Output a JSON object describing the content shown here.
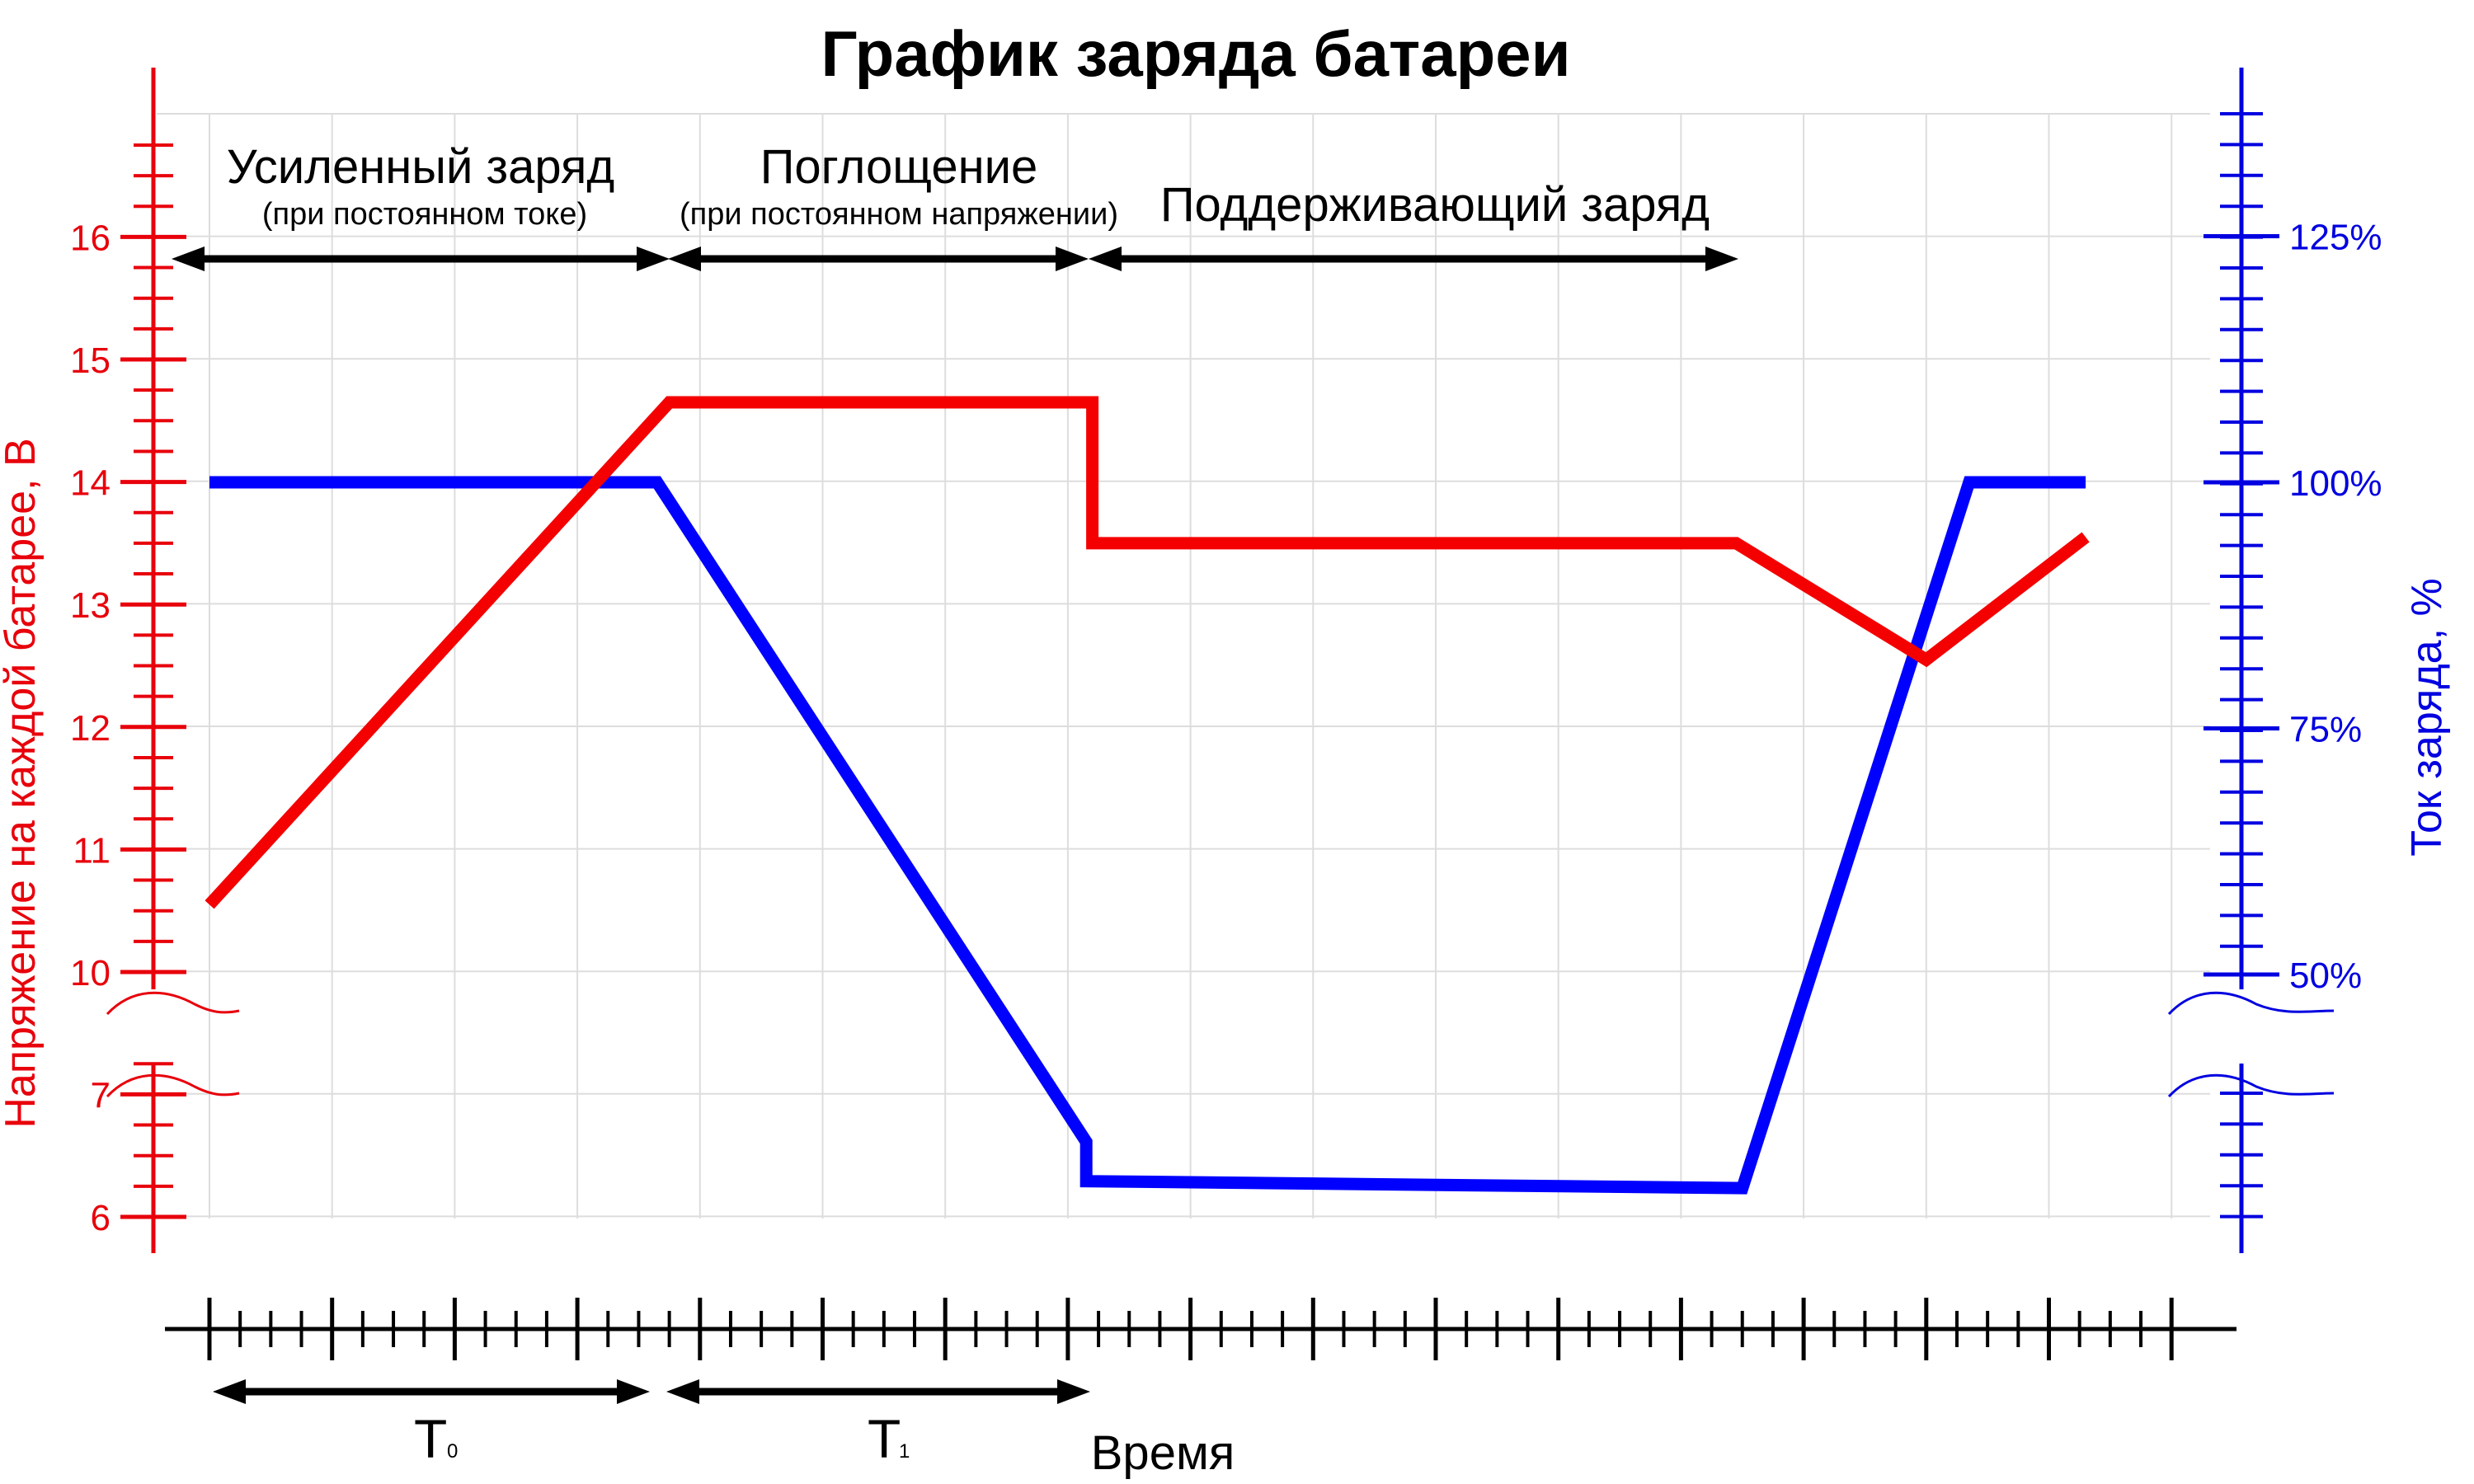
{
  "chart_data": {
    "type": "line",
    "title": "График заряда батареи",
    "xlabel": "Время",
    "ylabel_left": "Напряжение на каждой батарее, В",
    "ylabel_right": "Ток заряда, %",
    "left_axis_ticks": [
      "6",
      "7",
      "10",
      "11",
      "12",
      "13",
      "14",
      "15",
      "16"
    ],
    "right_axis_ticks": [
      "50%",
      "75%",
      "100%",
      "125%"
    ],
    "phases": [
      {
        "label": "Усиленный заряд",
        "sublabel": "(при постоянном токе)"
      },
      {
        "label": "Поглощение",
        "sublabel": "(при постоянном напряжении)"
      },
      {
        "label": "Поддерживающий заряд",
        "sublabel": ""
      }
    ],
    "periods": [
      {
        "label": "T",
        "subscript": "0"
      },
      {
        "label": "T",
        "subscript": "1"
      }
    ],
    "series": [
      {
        "name": "Напряжение на каждой батарее, В",
        "color": "#f50000",
        "points": [
          [
            0.0,
            10.55
          ],
          [
            3.75,
            14.65
          ],
          [
            7.2,
            14.65
          ],
          [
            7.2,
            13.5
          ],
          [
            12.45,
            13.5
          ],
          [
            14.0,
            12.55
          ],
          [
            15.3,
            13.55
          ]
        ]
      },
      {
        "name": "Ток заряда, %",
        "color": "#0000ff",
        "points": [
          [
            0.0,
            100
          ],
          [
            3.65,
            100
          ],
          [
            7.15,
            33
          ],
          [
            7.15,
            29
          ],
          [
            12.5,
            28.3
          ],
          [
            14.35,
            100
          ],
          [
            15.3,
            100
          ]
        ]
      }
    ],
    "legend": "none",
    "grid": true
  }
}
